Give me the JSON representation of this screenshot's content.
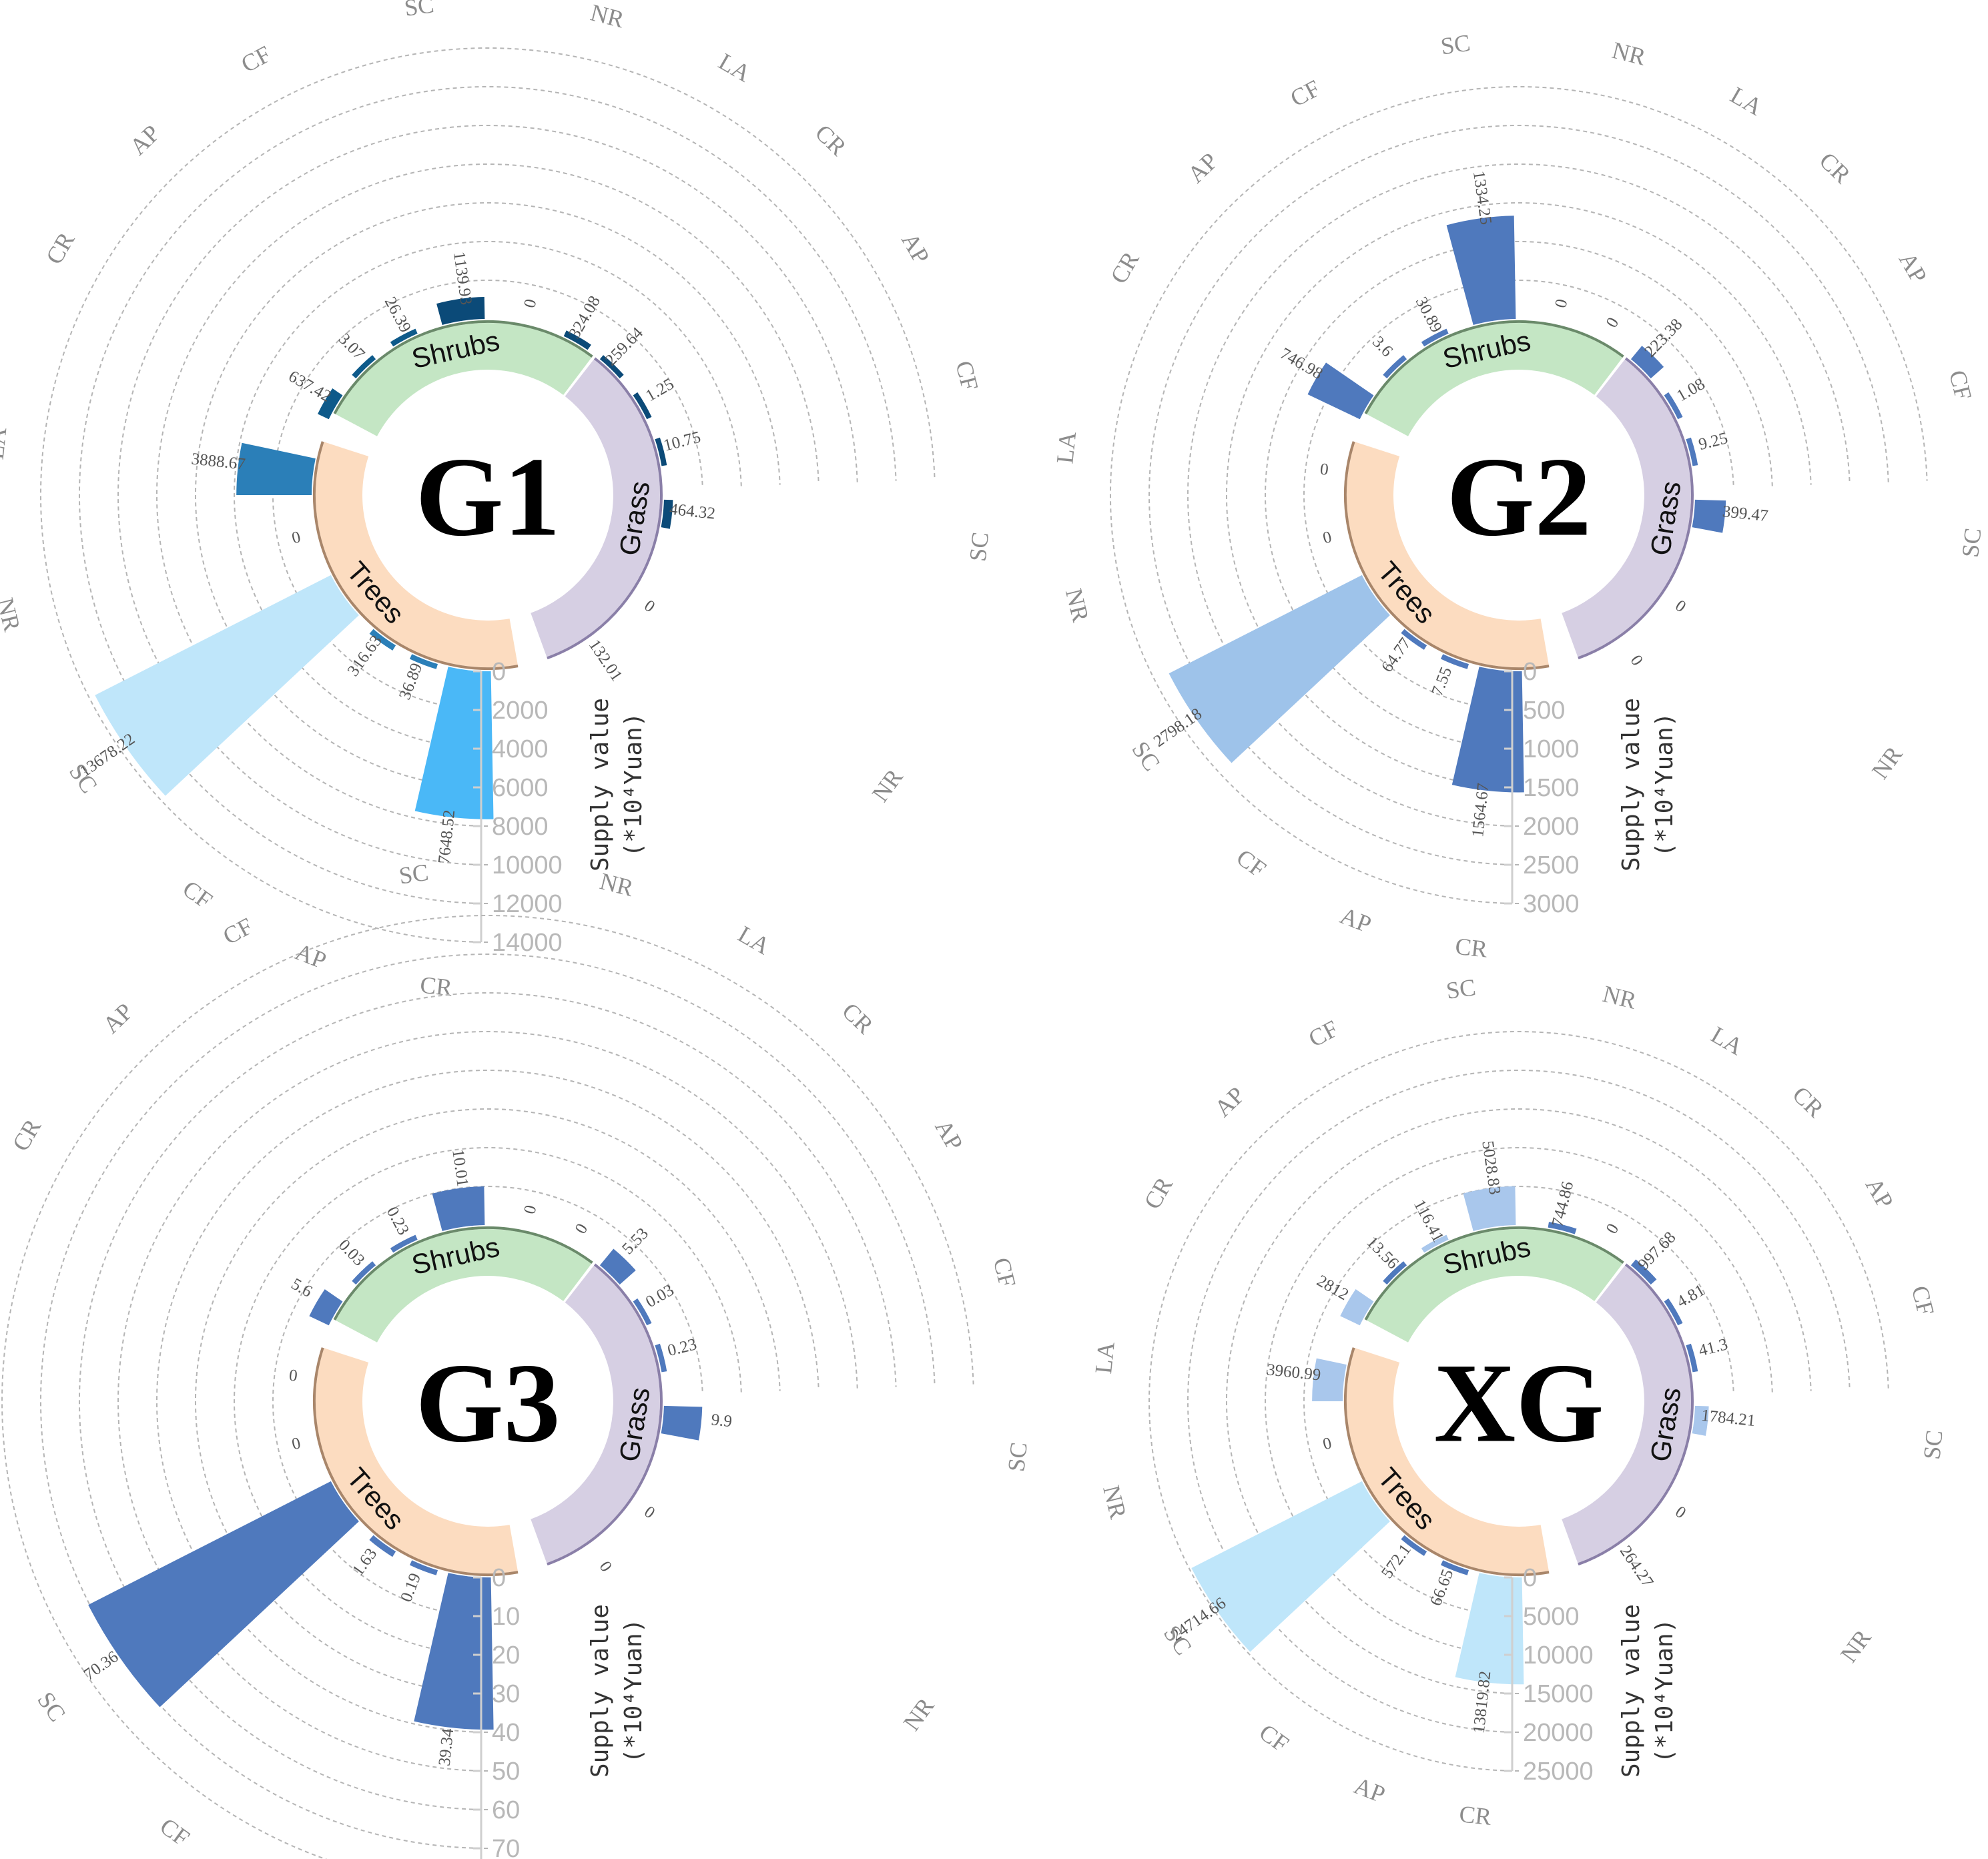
{
  "colors": {
    "trees_ring": "#fcdcc0",
    "shrubs_ring": "#c4e6c4",
    "grass_ring": "#d6cfe3",
    "trees_edge": "#a9866a",
    "shrubs_edge": "#6a8a6a",
    "grass_edge": "#8a7fa8",
    "grid": "#b5b5b5"
  },
  "axis_title": "Supply value",
  "unit_label": "(*10⁴Yuan)",
  "groups": [
    "Trees",
    "Shrubs",
    "Grass"
  ],
  "chart_data": [
    {
      "type": "bar",
      "title": "G1",
      "categories": [
        "CR",
        "AP",
        "CF",
        "SC",
        "NR",
        "LA",
        "CR",
        "AP",
        "CF",
        "SC",
        "NR",
        "LA",
        "CR",
        "AP",
        "CF",
        "SC",
        "NR"
      ],
      "group_of_category": [
        "Trees",
        "Trees",
        "Trees",
        "Trees",
        "Trees",
        "Trees",
        "Shrubs",
        "Shrubs",
        "Shrubs",
        "Shrubs",
        "Shrubs",
        "Shrubs",
        "Grass",
        "Grass",
        "Grass",
        "Grass",
        "Grass"
      ],
      "values": [
        7648.52,
        36.89,
        316.63,
        13678.22,
        0,
        3888.67,
        637.42,
        3.07,
        26.39,
        1139.93,
        0,
        324.08,
        259.64,
        1.25,
        10.75,
        464.32,
        0
      ],
      "value_labels": [
        "7648.52",
        "36.89",
        "316.63",
        "13678.22",
        "0",
        "3888.67",
        "637.42",
        "3.07",
        "26.39",
        "1139.93",
        "0",
        "324.08",
        "259.64",
        "1.25",
        "10.75",
        "464.32",
        "0"
      ],
      "bar_colors": [
        "#4ab8f7",
        "#2b7fb8",
        "#2b7fb8",
        "#bfe6fa",
        "#2b7fb8",
        "#2b7fb8",
        "#0e5a8a",
        "#0e5a8a",
        "#0e5a8a",
        "#0b4a78",
        "#0b4a78",
        "#0b4a78",
        "#0b4a78",
        "#0b4a78",
        "#0b4a78",
        "#0b4a78",
        "#0b4a78"
      ],
      "extra_label": "132.01",
      "ylim": [
        0,
        14000
      ],
      "ticks": [
        "0",
        "2000",
        "4000",
        "6000",
        "8000",
        "10000",
        "12000",
        "14000"
      ]
    },
    {
      "type": "bar",
      "title": "G2",
      "categories": [
        "CR",
        "AP",
        "CF",
        "SC",
        "NR",
        "LA",
        "CR",
        "AP",
        "CF",
        "SC",
        "NR",
        "LA",
        "CR",
        "AP",
        "CF",
        "SC",
        "NR"
      ],
      "group_of_category": [
        "Trees",
        "Trees",
        "Trees",
        "Trees",
        "Trees",
        "Trees",
        "Shrubs",
        "Shrubs",
        "Shrubs",
        "Shrubs",
        "Shrubs",
        "Shrubs",
        "Grass",
        "Grass",
        "Grass",
        "Grass",
        "Grass"
      ],
      "values": [
        1564.67,
        7.55,
        64.77,
        2798.18,
        0,
        0,
        746.98,
        3.6,
        30.89,
        1334.25,
        0,
        0,
        223.38,
        1.08,
        9.25,
        399.47,
        0
      ],
      "value_labels": [
        "1564.67",
        "7.55",
        "64.77",
        "2798.18",
        "0",
        "0",
        "746.98",
        "3.6",
        "30.89",
        "1334.25",
        "0",
        "0",
        "223.38",
        "1.08",
        "9.25",
        "399.47",
        "0"
      ],
      "bar_colors": [
        "#4f79bd",
        "#4f79bd",
        "#4f79bd",
        "#9ec3ea",
        "#4f79bd",
        "#4f79bd",
        "#4f79bd",
        "#4f79bd",
        "#4f79bd",
        "#4f79bd",
        "#4f79bd",
        "#4f79bd",
        "#4f79bd",
        "#4f79bd",
        "#4f79bd",
        "#4f79bd",
        "#4f79bd"
      ],
      "extra_label": "0",
      "ylim": [
        0,
        3000
      ],
      "ticks": [
        "0",
        "500",
        "1000",
        "1500",
        "2000",
        "2500",
        "3000"
      ]
    },
    {
      "type": "bar",
      "title": "G3",
      "categories": [
        "CR",
        "AP",
        "CF",
        "SC",
        "NR",
        "LA",
        "CR",
        "AP",
        "CF",
        "SC",
        "NR",
        "LA",
        "CR",
        "AP",
        "CF",
        "SC",
        "NR"
      ],
      "group_of_category": [
        "Trees",
        "Trees",
        "Trees",
        "Trees",
        "Trees",
        "Trees",
        "Shrubs",
        "Shrubs",
        "Shrubs",
        "Shrubs",
        "Shrubs",
        "Shrubs",
        "Grass",
        "Grass",
        "Grass",
        "Grass",
        "Grass"
      ],
      "values": [
        39.34,
        0.19,
        1.63,
        70.36,
        0,
        0,
        5.6,
        0.03,
        0.23,
        10.01,
        0,
        0,
        5.53,
        0.03,
        0.23,
        9.9,
        0
      ],
      "value_labels": [
        "39.34",
        "0.19",
        "1.63",
        "70.36",
        "0",
        "0",
        "5.6",
        "0.03",
        "0.23",
        "10.01",
        "0",
        "0",
        "5.53",
        "0.03",
        "0.23",
        "9.9",
        "0"
      ],
      "bar_colors": [
        "#4f79bd",
        "#4f79bd",
        "#4f79bd",
        "#4f79bd",
        "#4f79bd",
        "#4f79bd",
        "#4f79bd",
        "#4f79bd",
        "#4f79bd",
        "#4f79bd",
        "#4f79bd",
        "#4f79bd",
        "#4f79bd",
        "#4f79bd",
        "#4f79bd",
        "#4f79bd",
        "#4f79bd"
      ],
      "extra_label": "0",
      "ylim": [
        0,
        80
      ],
      "ticks": [
        "0",
        "10",
        "20",
        "30",
        "40",
        "50",
        "60",
        "70",
        "80"
      ]
    },
    {
      "type": "bar",
      "title": "XG",
      "categories": [
        "CR",
        "AP",
        "CF",
        "SC",
        "NR",
        "LA",
        "CR",
        "AP",
        "CF",
        "SC",
        "NR",
        "LA",
        "CR",
        "AP",
        "CF",
        "SC",
        "NR"
      ],
      "group_of_category": [
        "Trees",
        "Trees",
        "Trees",
        "Trees",
        "Trees",
        "Trees",
        "Shrubs",
        "Shrubs",
        "Shrubs",
        "Shrubs",
        "Shrubs",
        "Shrubs",
        "Grass",
        "Grass",
        "Grass",
        "Grass",
        "Grass"
      ],
      "values": [
        13819.82,
        66.65,
        572.1,
        24714.66,
        0,
        3960.99,
        2812,
        13.56,
        116.41,
        5028.83,
        744.86,
        0,
        997.68,
        4.81,
        41.3,
        1784.21,
        0
      ],
      "value_labels": [
        "13819.82",
        "66.65",
        "572.1",
        "24714.66",
        "0",
        "3960.99",
        "2812",
        "13.56",
        "116.41",
        "5028.83",
        "744.86",
        "0",
        "997.68",
        "4.81",
        "41.3",
        "1784.21",
        "0"
      ],
      "bar_colors": [
        "#bfe6fa",
        "#4f79bd",
        "#4f79bd",
        "#bfe6fa",
        "#bfe6fa",
        "#a9c7ec",
        "#a9c7ec",
        "#4f79bd",
        "#a9c7ec",
        "#a9c7ec",
        "#4f79bd",
        "#4f79bd",
        "#4f79bd",
        "#4f79bd",
        "#4f79bd",
        "#a9c7ec",
        "#4f79bd"
      ],
      "extra_label": "264.27",
      "ylim": [
        0,
        25000
      ],
      "ticks": [
        "0",
        "5000",
        "10000",
        "15000",
        "20000",
        "25000"
      ]
    }
  ]
}
